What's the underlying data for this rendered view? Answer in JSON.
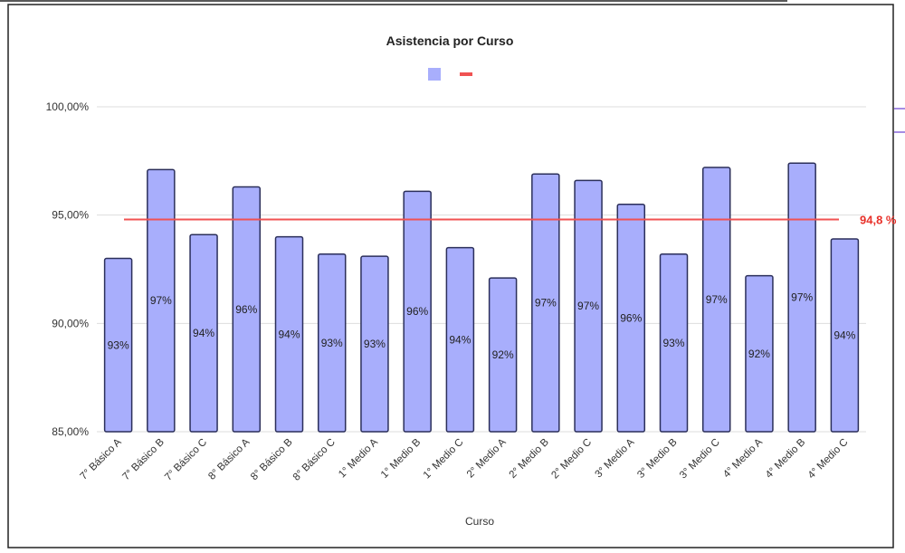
{
  "chart_data": {
    "type": "bar",
    "title": "Asistencia por Curso",
    "xlabel": "Curso",
    "ylabel": "",
    "ylim": [
      85,
      100
    ],
    "yticks": [
      "85,00%",
      "90,00%",
      "95,00%",
      "100,00%"
    ],
    "ytick_values": [
      85,
      90,
      95,
      100
    ],
    "grid": true,
    "legend_position": "top-center",
    "categories": [
      "7° Básico A",
      "7° Básico B",
      "7° Básico C",
      "8° Básico A",
      "8° Básico B",
      "8° Básico C",
      "1° Medio A",
      "1° Medio B",
      "1° Medio C",
      "2° Medio A",
      "2° Medio B",
      "2° Medio C",
      "3° Medio A",
      "3° Medio B",
      "3° Medio C",
      "4° Medio A",
      "4° Medio B",
      "4° Medio C"
    ],
    "values": [
      93.0,
      97.1,
      94.1,
      96.3,
      94.0,
      93.2,
      93.1,
      96.1,
      93.5,
      92.1,
      96.9,
      96.6,
      95.5,
      93.2,
      97.2,
      92.2,
      97.4,
      93.9
    ],
    "data_labels": [
      "93%",
      "97%",
      "94%",
      "96%",
      "94%",
      "93%",
      "93%",
      "96%",
      "94%",
      "92%",
      "97%",
      "97%",
      "96%",
      "93%",
      "97%",
      "92%",
      "97%",
      "94%"
    ],
    "reference_line": {
      "value": 94.8,
      "label": "94,8 %"
    },
    "colors": {
      "bar_fill": "#a8aefc",
      "bar_stroke": "#2b2f5a",
      "reference_line": "#f05252",
      "grid": "#dddddd",
      "accent_line": "#6a3fd1"
    }
  }
}
